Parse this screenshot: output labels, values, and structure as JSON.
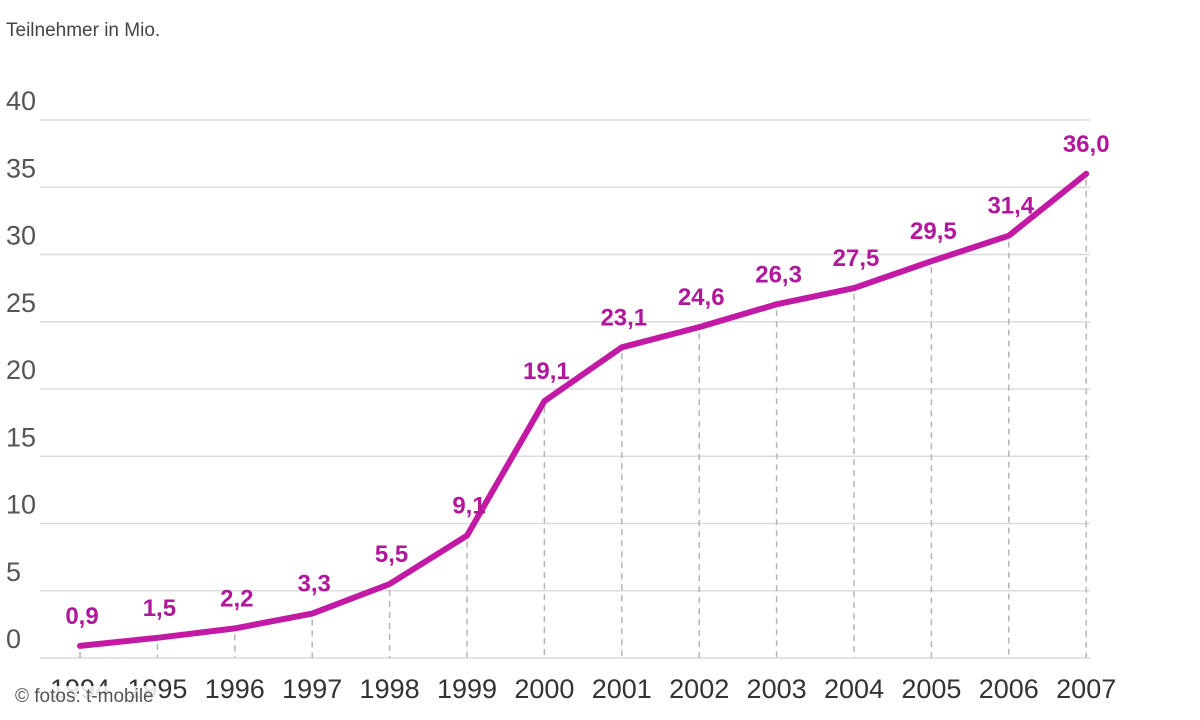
{
  "chart_data": {
    "type": "line",
    "ylabel": "Teilnehmer in Mio.",
    "xlabel": "",
    "x": [
      "1994",
      "1995",
      "1996",
      "1997",
      "1998",
      "1999",
      "2000",
      "2001",
      "2002",
      "2003",
      "2004",
      "2005",
      "2006",
      "2007"
    ],
    "series": [
      {
        "values": [
          0.9,
          1.5,
          2.2,
          3.3,
          5.5,
          9.1,
          19.1,
          23.1,
          24.6,
          26.3,
          27.5,
          29.5,
          31.4,
          36.0
        ]
      }
    ],
    "data_labels": [
      "0,9",
      "1,5",
      "2,2",
      "3,3",
      "5,5",
      "9,1",
      "19,1",
      "23,1",
      "24,6",
      "26,3",
      "27,5",
      "29,5",
      "31,4",
      "36,0"
    ],
    "yticks": [
      "0",
      "5",
      "10",
      "15",
      "20",
      "25",
      "30",
      "35",
      "40"
    ],
    "ylim": [
      0,
      40
    ],
    "grid": true,
    "line_color": "#c21aa5"
  },
  "credit": "© fotos: t-mobile"
}
